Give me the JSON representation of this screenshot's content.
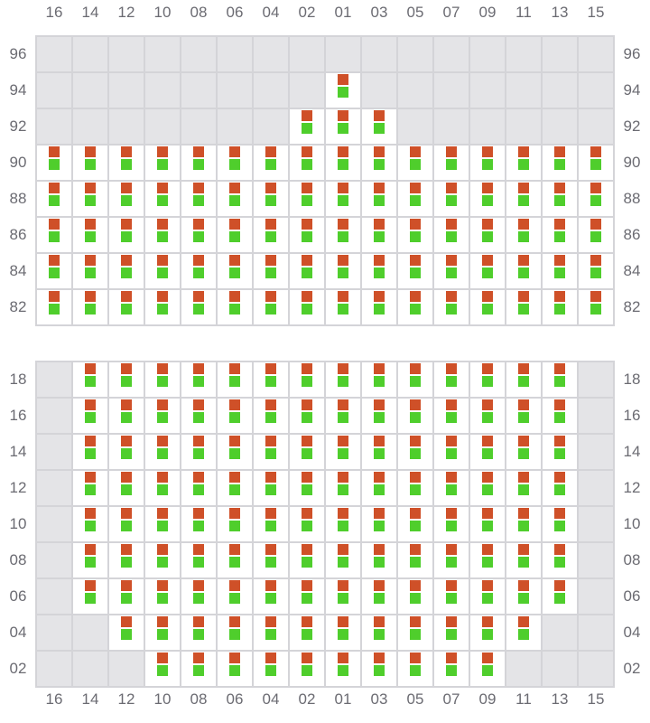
{
  "columns": [
    "16",
    "14",
    "12",
    "10",
    "08",
    "06",
    "04",
    "02",
    "01",
    "03",
    "05",
    "07",
    "09",
    "11",
    "13",
    "15"
  ],
  "colors": {
    "available_cell": "#ffffff",
    "unavailable_cell": "#e4e4e7",
    "grid_line": "#d4d4d8",
    "top_marker": "#cf5028",
    "bottom_marker": "#4fce2c"
  },
  "sections": [
    {
      "name": "upper",
      "rows": [
        {
          "label": "96",
          "mask": "0000000000000000"
        },
        {
          "label": "94",
          "mask": "0000000010000000"
        },
        {
          "label": "92",
          "mask": "0000000111000000"
        },
        {
          "label": "90",
          "mask": "1111111111111111"
        },
        {
          "label": "88",
          "mask": "1111111111111111"
        },
        {
          "label": "86",
          "mask": "1111111111111111"
        },
        {
          "label": "84",
          "mask": "1111111111111111"
        },
        {
          "label": "82",
          "mask": "1111111111111111"
        }
      ]
    },
    {
      "name": "lower",
      "rows": [
        {
          "label": "18",
          "mask": "0111111111111110"
        },
        {
          "label": "16",
          "mask": "0111111111111110"
        },
        {
          "label": "14",
          "mask": "0111111111111110"
        },
        {
          "label": "12",
          "mask": "0111111111111110"
        },
        {
          "label": "10",
          "mask": "0111111111111110"
        },
        {
          "label": "08",
          "mask": "0111111111111110"
        },
        {
          "label": "06",
          "mask": "0111111111111110"
        },
        {
          "label": "04",
          "mask": "0011111111111100"
        },
        {
          "label": "02",
          "mask": "0001111111111000"
        }
      ]
    }
  ]
}
